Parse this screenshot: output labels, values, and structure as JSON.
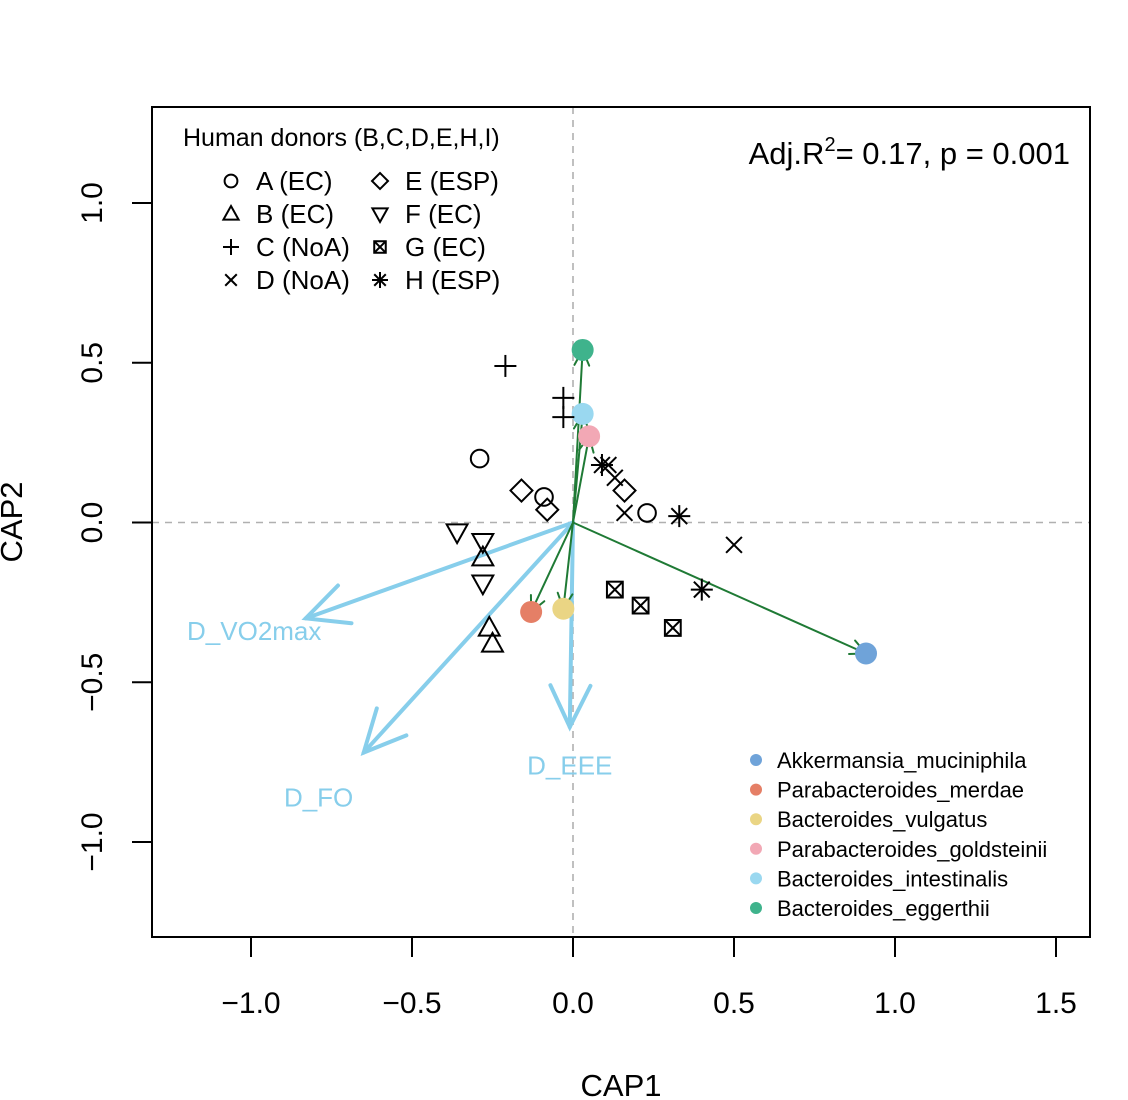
{
  "chart_data": {
    "type": "scatter",
    "title": "",
    "xlabel": "CAP1",
    "ylabel": "CAP2",
    "xlim": [
      -1.31,
      1.6
    ],
    "ylim": [
      -1.29,
      1.29
    ],
    "xticks": [
      -1.0,
      -0.5,
      0.0,
      0.5,
      1.0,
      1.5
    ],
    "yticks": [
      -1.0,
      -0.5,
      0.0,
      0.5,
      1.0
    ],
    "xtick_labels": [
      "−1.0",
      "−0.5",
      "0.0",
      "0.5",
      "1.0",
      "1.5"
    ],
    "ytick_labels": [
      "−1.0",
      "−0.5",
      "0.0",
      "0.5",
      "1.0"
    ],
    "reference_lines": {
      "x": 0,
      "y": 0
    },
    "annotation": {
      "prefix": "Adj.R",
      "sup": "2",
      "suffix": "= 0.17, p = 0.001"
    },
    "donor_legend": {
      "title": "Human donors (B,C,D,E,H,I)",
      "entries": [
        {
          "symbol": "circle",
          "label": "A (EC)"
        },
        {
          "symbol": "triangle-up",
          "label": "B (EC)"
        },
        {
          "symbol": "plus",
          "label": "C (NoA)"
        },
        {
          "symbol": "cross",
          "label": "D (NoA)"
        },
        {
          "symbol": "diamond",
          "label": "E (ESP)"
        },
        {
          "symbol": "triangle-down",
          "label": "F (EC)"
        },
        {
          "symbol": "box-x",
          "label": "G (EC)"
        },
        {
          "symbol": "asterisk",
          "label": "H (ESP)"
        }
      ]
    },
    "samples": [
      {
        "donor": "A",
        "symbol": "circle",
        "x": -0.29,
        "y": 0.2
      },
      {
        "donor": "A",
        "symbol": "circle",
        "x": -0.09,
        "y": 0.08
      },
      {
        "donor": "A",
        "symbol": "circle",
        "x": 0.23,
        "y": 0.03
      },
      {
        "donor": "B",
        "symbol": "triangle-up",
        "x": -0.28,
        "y": -0.11
      },
      {
        "donor": "B",
        "symbol": "triangle-up",
        "x": -0.26,
        "y": -0.33
      },
      {
        "donor": "B",
        "symbol": "triangle-up",
        "x": -0.25,
        "y": -0.38
      },
      {
        "donor": "C",
        "symbol": "plus",
        "x": -0.21,
        "y": 0.49
      },
      {
        "donor": "C",
        "symbol": "plus",
        "x": -0.03,
        "y": 0.39
      },
      {
        "donor": "C",
        "symbol": "plus",
        "x": -0.03,
        "y": 0.33
      },
      {
        "donor": "D",
        "symbol": "cross",
        "x": 0.11,
        "y": 0.18
      },
      {
        "donor": "D",
        "symbol": "cross",
        "x": 0.13,
        "y": 0.14
      },
      {
        "donor": "D",
        "symbol": "cross",
        "x": 0.16,
        "y": 0.03
      },
      {
        "donor": "D",
        "symbol": "cross",
        "x": 0.5,
        "y": -0.07
      },
      {
        "donor": "E",
        "symbol": "diamond",
        "x": -0.16,
        "y": 0.1
      },
      {
        "donor": "E",
        "symbol": "diamond",
        "x": -0.08,
        "y": 0.04
      },
      {
        "donor": "E",
        "symbol": "diamond",
        "x": 0.16,
        "y": 0.1
      },
      {
        "donor": "F",
        "symbol": "triangle-down",
        "x": -0.36,
        "y": -0.03
      },
      {
        "donor": "F",
        "symbol": "triangle-down",
        "x": -0.28,
        "y": -0.06
      },
      {
        "donor": "F",
        "symbol": "triangle-down",
        "x": -0.28,
        "y": -0.19
      },
      {
        "donor": "G",
        "symbol": "box-x",
        "x": 0.13,
        "y": -0.21
      },
      {
        "donor": "G",
        "symbol": "box-x",
        "x": 0.21,
        "y": -0.26
      },
      {
        "donor": "G",
        "symbol": "box-x",
        "x": 0.31,
        "y": -0.33
      },
      {
        "donor": "H",
        "symbol": "asterisk",
        "x": 0.09,
        "y": 0.18
      },
      {
        "donor": "H",
        "symbol": "asterisk",
        "x": 0.33,
        "y": 0.02
      },
      {
        "donor": "H",
        "symbol": "asterisk",
        "x": 0.4,
        "y": -0.21
      }
    ],
    "species_vectors": [
      {
        "name": "Akkermansia_muciniphila",
        "color": "#6fa3d9",
        "x": 0.91,
        "y": -0.41
      },
      {
        "name": "Parabacteroides_merdae",
        "color": "#e57f66",
        "x": -0.13,
        "y": -0.28
      },
      {
        "name": "Bacteroides_vulgatus",
        "color": "#ead584",
        "x": -0.03,
        "y": -0.27
      },
      {
        "name": "Parabacteroides_goldsteinii",
        "color": "#f2a8b5",
        "x": 0.05,
        "y": 0.27
      },
      {
        "name": "Bacteroides_intestinalis",
        "color": "#9ad8f0",
        "x": 0.03,
        "y": 0.34
      },
      {
        "name": "Bacteroides_eggerthii",
        "color": "#3fb38c",
        "x": 0.03,
        "y": 0.54
      }
    ],
    "species_arrow_color": "#1f7a35",
    "environment_vectors": [
      {
        "name": "D_VO2max",
        "x": -0.83,
        "y": -0.3,
        "label": {
          "x": -0.99,
          "y": -0.34
        }
      },
      {
        "name": "D_FO",
        "x": -0.65,
        "y": -0.72,
        "label": {
          "x": -0.79,
          "y": -0.86
        }
      },
      {
        "name": "D_EEE",
        "x": -0.01,
        "y": -0.64,
        "label": {
          "x": -0.01,
          "y": -0.76
        }
      }
    ],
    "environment_color": "#87ceeb"
  }
}
